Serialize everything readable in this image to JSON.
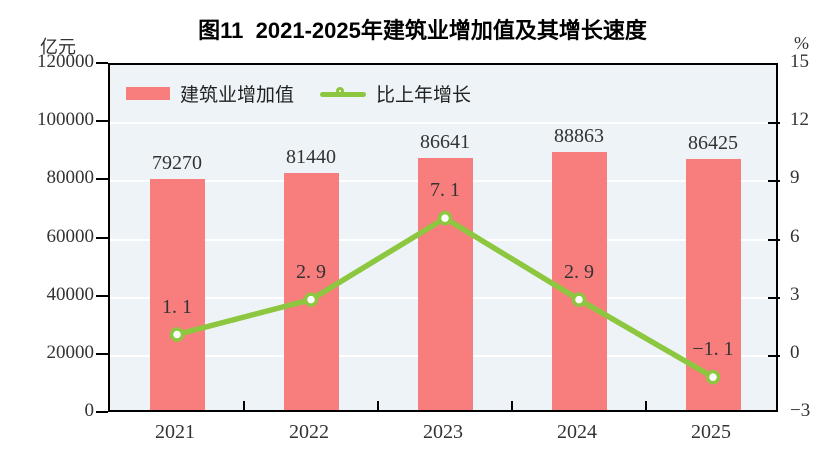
{
  "chart_data": {
    "type": "combo-bar-line",
    "title": "图11  2021-2025年建筑业增加值及其增长速度",
    "categories": [
      "2021",
      "2022",
      "2023",
      "2024",
      "2025"
    ],
    "series": [
      {
        "name": "建筑业增加值",
        "type": "bar",
        "axis": "left",
        "unit": "亿元",
        "color": "#F87D7D",
        "values": [
          79270,
          81440,
          86641,
          88863,
          86425
        ],
        "labels": [
          "79270",
          "81440",
          "86641",
          "88863",
          "86425"
        ]
      },
      {
        "name": "比上年增长",
        "type": "line",
        "axis": "right",
        "unit": "%",
        "color": "#8DC63F",
        "marker": "white-circle",
        "values": [
          1.1,
          2.9,
          7.1,
          2.9,
          -1.1
        ],
        "labels": [
          "1. 1",
          "2. 9",
          "7. 1",
          "2. 9",
          "−1. 1"
        ]
      }
    ],
    "left_axis": {
      "unit": "亿元",
      "min": 0,
      "max": 120000,
      "step": 20000,
      "tick_labels": [
        "120000",
        "100000",
        "80000",
        "60000",
        "40000",
        "20000",
        "0"
      ]
    },
    "right_axis": {
      "unit": "%",
      "min": -3,
      "max": 15,
      "step": 3,
      "tick_labels": [
        "15",
        "12",
        "9",
        "6",
        "3",
        "0",
        "−3"
      ]
    },
    "grid": true,
    "legend_position": "top-left-inside",
    "colors": {
      "plot_bg": "#EDF3F6",
      "grid": "#FFFFFF",
      "axis": "#000000",
      "text": "#333333"
    }
  }
}
